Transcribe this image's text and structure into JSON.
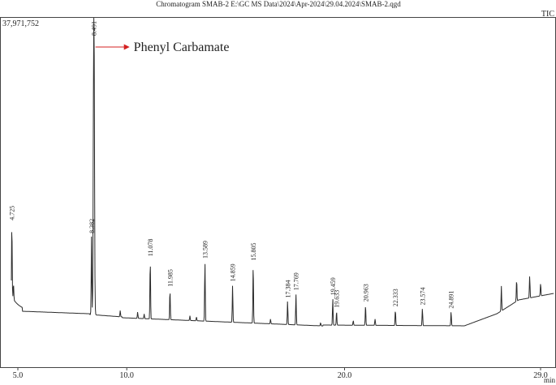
{
  "chart_data": {
    "type": "line",
    "title": "Chromatogram SMAB-2 E:\\GC MS Data\\2024\\Apr-2024\\29.04.2024\\SMAB-2.qgd",
    "signal_label": "TIC",
    "y_max_label": "37,971,752",
    "xlabel": "min",
    "xlim": [
      4.7,
      29.6
    ],
    "x_ticks": [
      {
        "value": 5.0,
        "label": "5.0"
      },
      {
        "value": 10.0,
        "label": "10.0"
      },
      {
        "value": 20.0,
        "label": "20.0"
      },
      {
        "value": 29.0,
        "label": "29.0"
      }
    ],
    "peaks": [
      {
        "rt": 4.725,
        "label": "4.725",
        "height": 0.235
      },
      {
        "rt": 8.382,
        "label": "8.382",
        "height": 0.25
      },
      {
        "rt": 8.491,
        "label": "8.491",
        "height": 1.0
      },
      {
        "rt": 11.078,
        "label": "11.078",
        "height": 0.19
      },
      {
        "rt": 11.985,
        "label": "11.985",
        "height": 0.095
      },
      {
        "rt": 13.589,
        "label": "13.589",
        "height": 0.19
      },
      {
        "rt": 14.859,
        "label": "14.859",
        "height": 0.12
      },
      {
        "rt": 15.805,
        "label": "15.805",
        "height": 0.19
      },
      {
        "rt": 17.384,
        "label": "17.384",
        "height": 0.075
      },
      {
        "rt": 17.769,
        "label": "17.769",
        "height": 0.1
      },
      {
        "rt": 19.459,
        "label": "19.459",
        "height": 0.085
      },
      {
        "rt": 19.633,
        "label": "19.633",
        "height": 0.045
      },
      {
        "rt": 20.963,
        "label": "20.963",
        "height": 0.065
      },
      {
        "rt": 22.333,
        "label": "22.333",
        "height": 0.05
      },
      {
        "rt": 23.574,
        "label": "23.574",
        "height": 0.055
      },
      {
        "rt": 24.891,
        "label": "24.891",
        "height": 0.045
      }
    ],
    "annotation": {
      "text": "Phenyl Carbamate",
      "target_rt": 8.491
    }
  }
}
